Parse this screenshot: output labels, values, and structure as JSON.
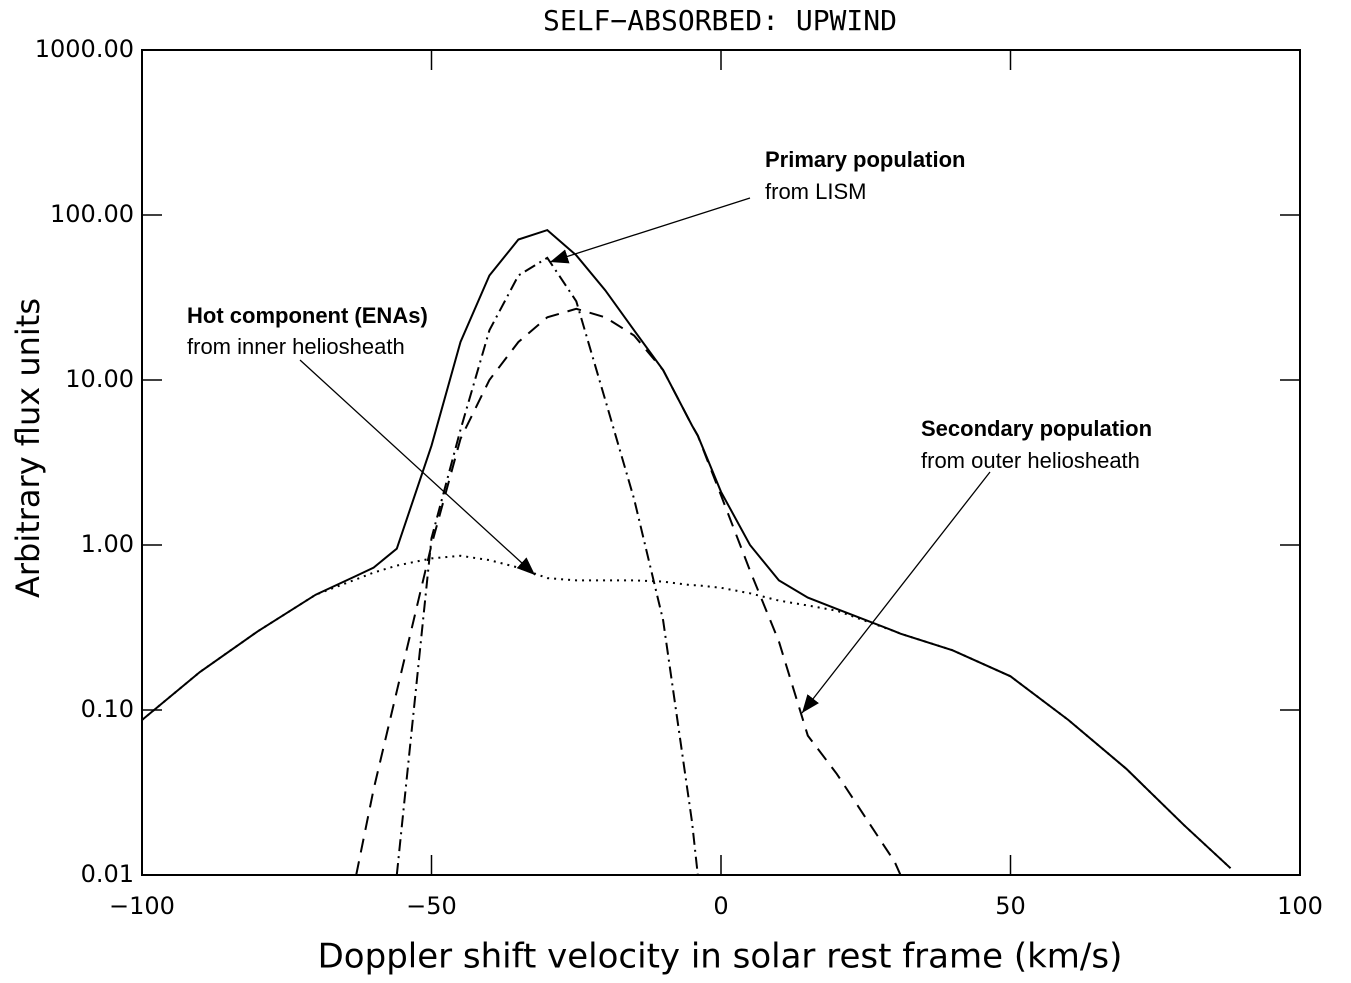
{
  "chart_data": {
    "type": "line",
    "title": "SELF−ABSORBED: UPWIND",
    "xlabel": "Doppler shift velocity in solar rest frame (km/s)",
    "ylabel": "Arbitrary flux units",
    "yscale": "log",
    "xlim": [
      -100,
      100
    ],
    "ylim": [
      0.01,
      1000
    ],
    "xticks": [
      {
        "value": -100,
        "label": "−100"
      },
      {
        "value": -50,
        "label": "−50"
      },
      0,
      50,
      100
    ],
    "yticks": [
      {
        "value": 0.01,
        "label": "0.01"
      },
      {
        "value": 0.1,
        "label": "0.10"
      },
      {
        "value": 1,
        "label": "1.00"
      },
      {
        "value": 10,
        "label": "10.00"
      },
      {
        "value": 100,
        "label": "100.00"
      },
      {
        "value": 1000,
        "label": "1000.00"
      }
    ],
    "x": [
      -100,
      -90,
      -80,
      -70,
      -63,
      -60,
      -56,
      -50,
      -45,
      -40,
      -35,
      -30,
      -25,
      -20,
      -15,
      -10,
      -5,
      -4,
      0,
      5,
      10,
      15,
      20,
      30,
      31,
      40,
      50,
      60,
      70,
      80,
      88
    ],
    "series": [
      {
        "color": "#000000",
        "linestyle": "solid",
        "values": [
          0.087,
          0.17,
          0.3,
          0.5,
          0.65,
          0.73,
          0.95,
          4.0,
          17,
          43,
          71,
          81,
          57,
          35,
          20,
          11.5,
          5.3,
          4.6,
          2.1,
          1.0,
          0.61,
          0.48,
          0.41,
          0.3,
          0.29,
          0.23,
          0.16,
          0.087,
          0.044,
          0.02,
          0.011
        ]
      },
      {
        "name": "Primary population",
        "annotation": "from LISM",
        "color": "#000000",
        "linestyle": "dashdot",
        "values": [
          null,
          null,
          null,
          null,
          null,
          null,
          0.01,
          1.1,
          5.0,
          20,
          43,
          55,
          30,
          7.6,
          1.9,
          0.35,
          0.021,
          0.01,
          null,
          null,
          null,
          null,
          null,
          null,
          null,
          null,
          null,
          null,
          null,
          null,
          null
        ]
      },
      {
        "name": "Secondary population",
        "annotation": "from outer heliosheath",
        "color": "#000000",
        "linestyle": "dashed",
        "values": [
          null,
          null,
          null,
          null,
          0.01,
          0.033,
          0.13,
          1.0,
          4.4,
          10,
          17,
          24,
          27,
          24,
          18.6,
          11.5,
          5.3,
          4.6,
          2.0,
          0.7,
          0.26,
          0.07,
          0.041,
          0.012,
          0.01,
          null,
          null,
          null,
          null,
          null,
          null
        ]
      },
      {
        "name": "Hot component (ENAs)",
        "annotation": "from inner heliosheath",
        "color": "#000000",
        "linestyle": "dotted",
        "values": [
          0.087,
          0.17,
          0.3,
          0.5,
          0.62,
          0.68,
          0.75,
          0.83,
          0.86,
          0.81,
          0.73,
          0.63,
          0.61,
          0.61,
          0.61,
          0.6,
          0.57,
          0.57,
          0.55,
          0.51,
          0.46,
          0.43,
          0.4,
          0.3,
          0.29,
          0.23,
          0.16,
          0.087,
          0.044,
          0.02,
          0.011
        ]
      }
    ]
  }
}
